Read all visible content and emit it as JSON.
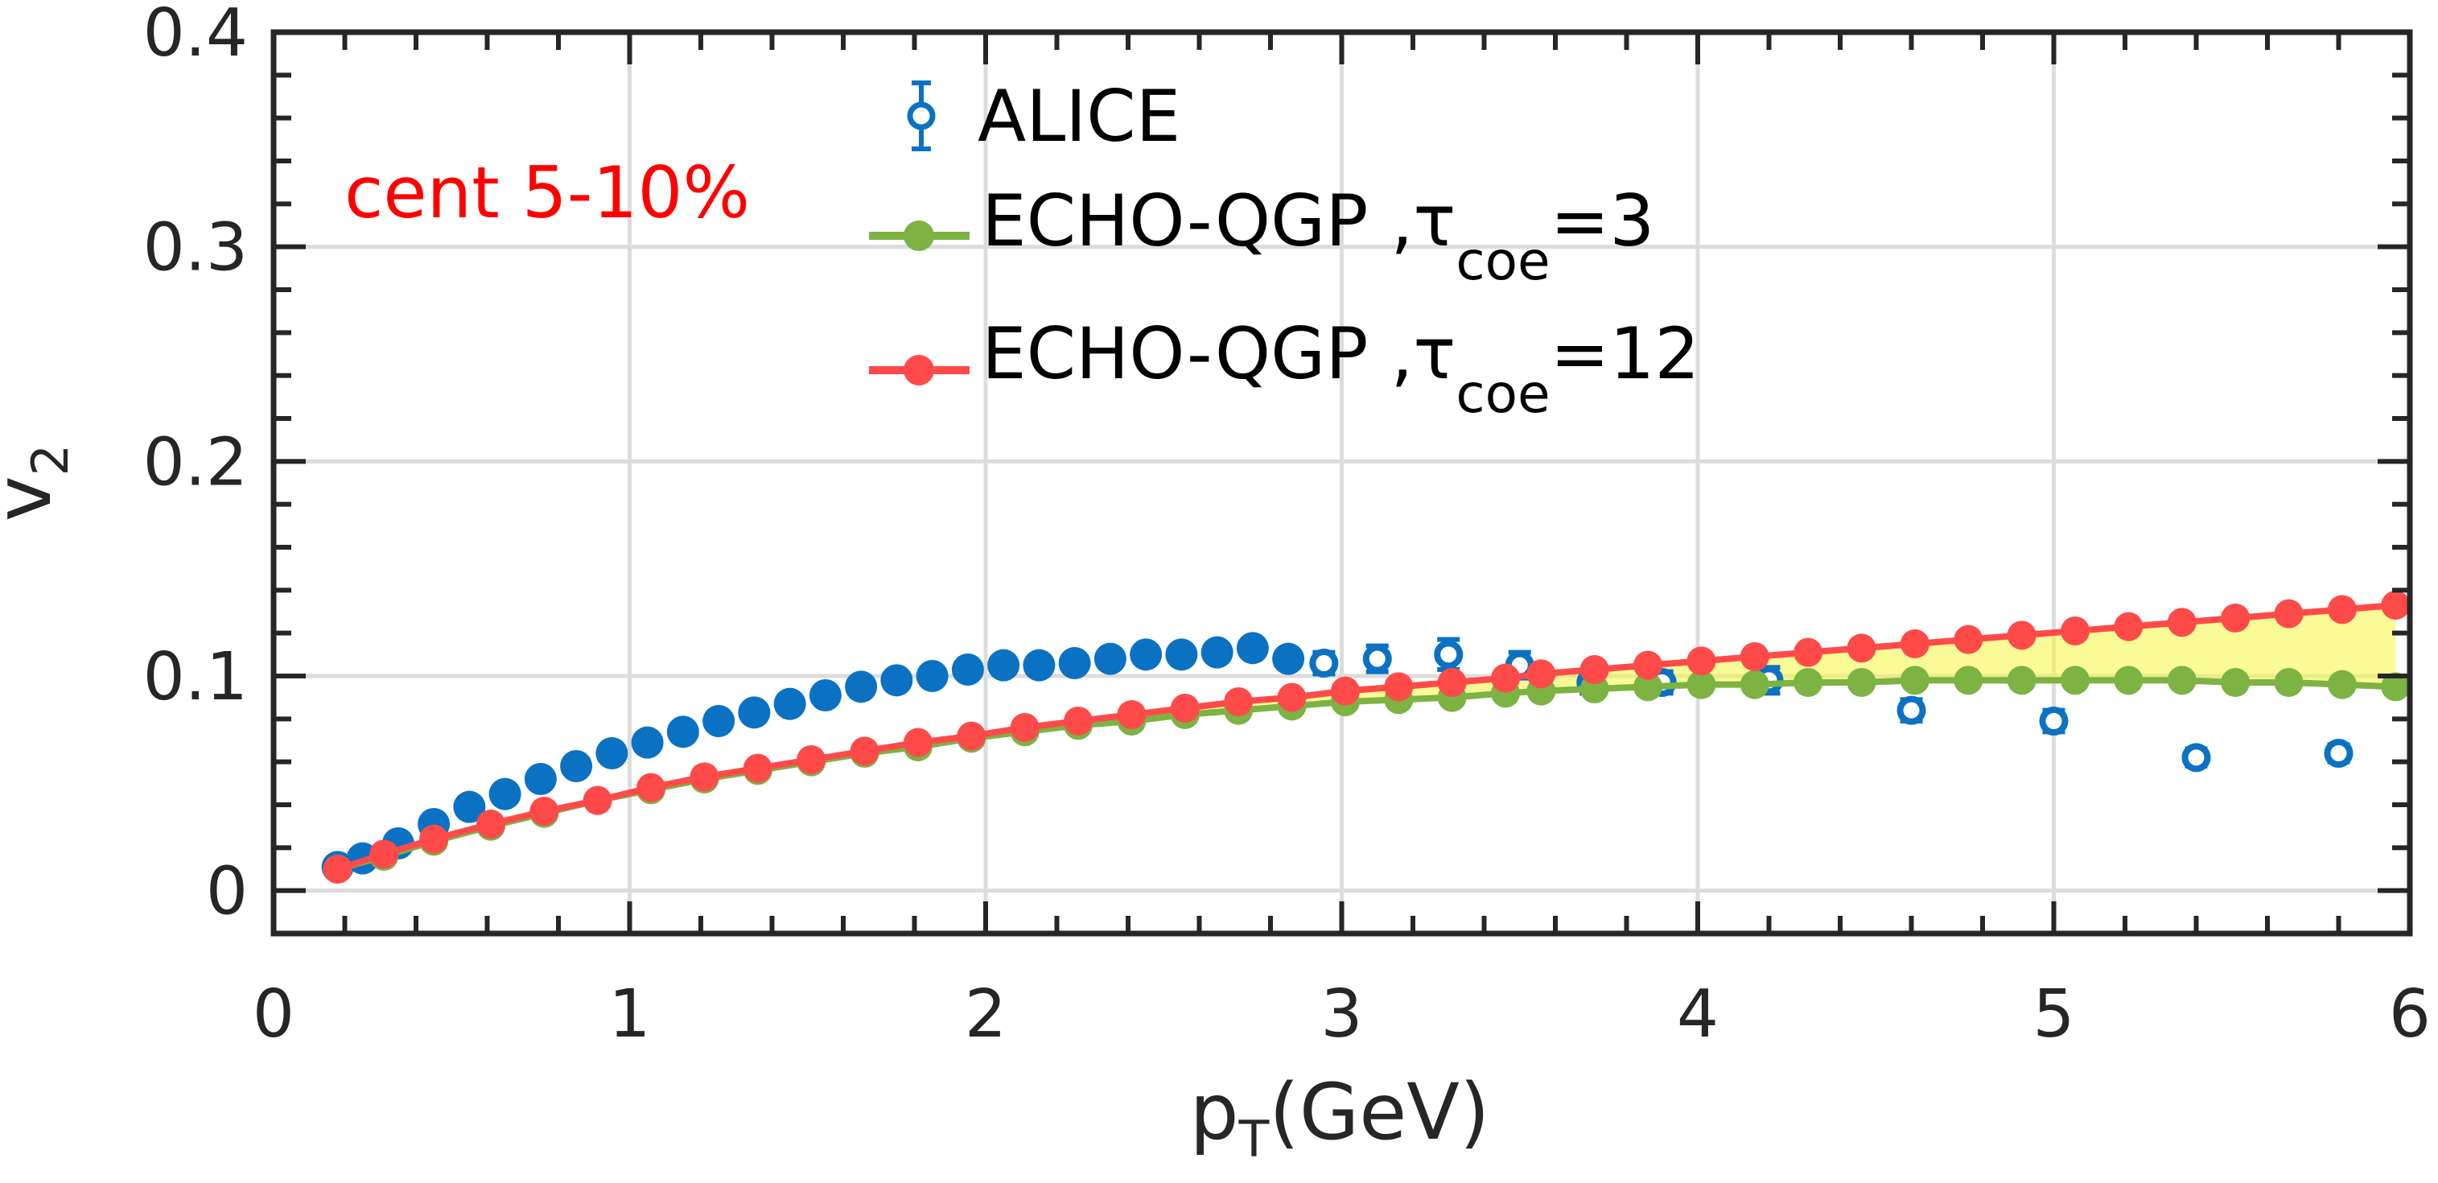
{
  "chart_data": {
    "type": "scatter",
    "xlabel": {
      "main": "p",
      "sub": "T",
      "suffix": "(GeV)"
    },
    "ylabel": {
      "main": "v",
      "sub": "2"
    },
    "xlim": [
      0,
      6
    ],
    "ylim": [
      -0.02,
      0.4
    ],
    "xticks": [
      0,
      1,
      2,
      3,
      4,
      5,
      6
    ],
    "xtick_labels": [
      "0",
      "1",
      "2",
      "3",
      "4",
      "5",
      "6"
    ],
    "yticks": [
      0,
      0.1,
      0.2,
      0.3,
      0.4
    ],
    "ytick_labels": [
      "0",
      "0.1",
      "0.2",
      "0.3",
      "0.4"
    ],
    "grid": true,
    "legend_position": "top-center",
    "annotation": {
      "text": "cent 5-10%",
      "color": "#ff0000"
    },
    "band_color": "#f5f542",
    "series": [
      {
        "name": "ALICE",
        "kind": "errorbar",
        "color": "#0b72c3",
        "x": [
          0.18,
          0.25,
          0.35,
          0.45,
          0.55,
          0.65,
          0.75,
          0.85,
          0.95,
          1.05,
          1.15,
          1.25,
          1.35,
          1.45,
          1.55,
          1.65,
          1.75,
          1.85,
          1.95,
          2.05,
          2.15,
          2.25,
          2.35,
          2.45,
          2.55,
          2.65,
          2.75,
          2.85,
          2.95,
          3.1,
          3.3,
          3.5,
          3.7,
          3.9,
          4.2,
          4.6,
          5.0,
          5.4,
          5.8
        ],
        "y": [
          0.011,
          0.015,
          0.022,
          0.031,
          0.039,
          0.045,
          0.052,
          0.058,
          0.064,
          0.069,
          0.074,
          0.079,
          0.083,
          0.087,
          0.091,
          0.095,
          0.098,
          0.1,
          0.103,
          0.105,
          0.105,
          0.106,
          0.108,
          0.11,
          0.11,
          0.111,
          0.113,
          0.108,
          0.106,
          0.108,
          0.11,
          0.105,
          0.097,
          0.097,
          0.098,
          0.084,
          0.079,
          0.062,
          0.064
        ],
        "yerr": [
          0.001,
          0.001,
          0.001,
          0.001,
          0.001,
          0.001,
          0.001,
          0.001,
          0.001,
          0.001,
          0.001,
          0.001,
          0.001,
          0.001,
          0.001,
          0.001,
          0.001,
          0.001,
          0.001,
          0.001,
          0.001,
          0.001,
          0.001,
          0.001,
          0.002,
          0.002,
          0.003,
          0.004,
          0.005,
          0.006,
          0.007,
          0.006,
          0.005,
          0.005,
          0.006,
          0.005,
          0.005,
          0.004,
          0.004
        ]
      },
      {
        "name": "ECHO-QGP ,τ",
        "name_sub": "coe",
        "name_suffix": "=3",
        "kind": "line-marker",
        "color": "#7cb342",
        "x": [
          0.18,
          0.31,
          0.45,
          0.61,
          0.76,
          0.91,
          1.06,
          1.21,
          1.36,
          1.51,
          1.66,
          1.81,
          1.96,
          2.11,
          2.26,
          2.41,
          2.56,
          2.71,
          2.86,
          3.01,
          3.16,
          3.31,
          3.46,
          3.56,
          3.71,
          3.86,
          4.01,
          4.16,
          4.31,
          4.46,
          4.61,
          4.76,
          4.91,
          5.06,
          5.21,
          5.36,
          5.51,
          5.66,
          5.81,
          5.96
        ],
        "y": [
          0.01,
          0.016,
          0.023,
          0.03,
          0.036,
          0.042,
          0.047,
          0.052,
          0.056,
          0.06,
          0.064,
          0.067,
          0.071,
          0.074,
          0.077,
          0.079,
          0.082,
          0.084,
          0.086,
          0.088,
          0.089,
          0.09,
          0.092,
          0.093,
          0.094,
          0.095,
          0.096,
          0.096,
          0.097,
          0.097,
          0.098,
          0.098,
          0.098,
          0.098,
          0.098,
          0.098,
          0.097,
          0.097,
          0.096,
          0.095
        ]
      },
      {
        "name": "ECHO-QGP ,τ",
        "name_sub": "coe",
        "name_suffix": "=12",
        "kind": "line-marker",
        "color": "#ff4a4a",
        "x": [
          0.18,
          0.31,
          0.45,
          0.61,
          0.76,
          0.91,
          1.06,
          1.21,
          1.36,
          1.51,
          1.66,
          1.81,
          1.96,
          2.11,
          2.26,
          2.41,
          2.56,
          2.71,
          2.86,
          3.01,
          3.16,
          3.31,
          3.46,
          3.56,
          3.71,
          3.86,
          4.01,
          4.16,
          4.31,
          4.46,
          4.61,
          4.76,
          4.91,
          5.06,
          5.21,
          5.36,
          5.51,
          5.66,
          5.81,
          5.96
        ],
        "y": [
          0.01,
          0.017,
          0.024,
          0.031,
          0.037,
          0.042,
          0.048,
          0.053,
          0.057,
          0.061,
          0.065,
          0.069,
          0.072,
          0.076,
          0.079,
          0.082,
          0.085,
          0.088,
          0.09,
          0.093,
          0.095,
          0.097,
          0.099,
          0.101,
          0.103,
          0.105,
          0.107,
          0.109,
          0.111,
          0.113,
          0.115,
          0.117,
          0.119,
          0.121,
          0.123,
          0.125,
          0.127,
          0.129,
          0.131,
          0.133
        ]
      }
    ]
  }
}
